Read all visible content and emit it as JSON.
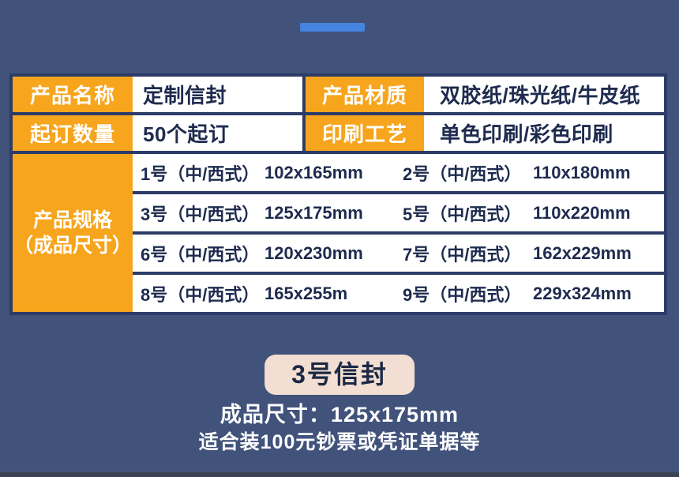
{
  "page": {
    "background_color": "#41527B",
    "accent_bar_color": "#4584DF",
    "bottom_strip_color": "#3A4254"
  },
  "spec_table": {
    "border_color": "#2C3B68",
    "header_bg": "#F6A51D",
    "header_text_color": "#FFFFFF",
    "cell_bg": "#FFFFFF",
    "cell_text_color": "#1E2B4E",
    "info_rows": [
      {
        "label1": "产品名称",
        "value1": "定制信封",
        "label2": "产品材质",
        "value2": "双胶纸/珠光纸/牛皮纸"
      },
      {
        "label1": "起订数量",
        "value1": "50个起订",
        "label2": "印刷工艺",
        "value2": "单色印刷/彩色印刷"
      }
    ],
    "spec_header_line1": "产品规格",
    "spec_header_line2": "（成品尺寸）",
    "spec_rows": [
      {
        "label1": "1号（中/西式）",
        "value1": "102x165mm",
        "label2": "2号（中/西式）",
        "value2": "110x180mm"
      },
      {
        "label1": "3号（中/西式）",
        "value1": "125x175mm",
        "label2": "5号（中/西式）",
        "value2": "110x220mm"
      },
      {
        "label1": "6号（中/西式）",
        "value1": "120x230mm",
        "label2": "7号（中/西式）",
        "value2": "162x229mm"
      },
      {
        "label1": "8号（中/西式）",
        "value1": "165x255m",
        "label2": "9号（中/西式）",
        "value2": "229x324mm"
      }
    ]
  },
  "highlight": {
    "badge_label": "3号信封",
    "badge_bg": "#F2DED2",
    "badge_text_color": "#1C2945",
    "size_line": "成品尺寸：125x175mm",
    "usage_line": "适合装100元钞票或凭证单据等"
  }
}
